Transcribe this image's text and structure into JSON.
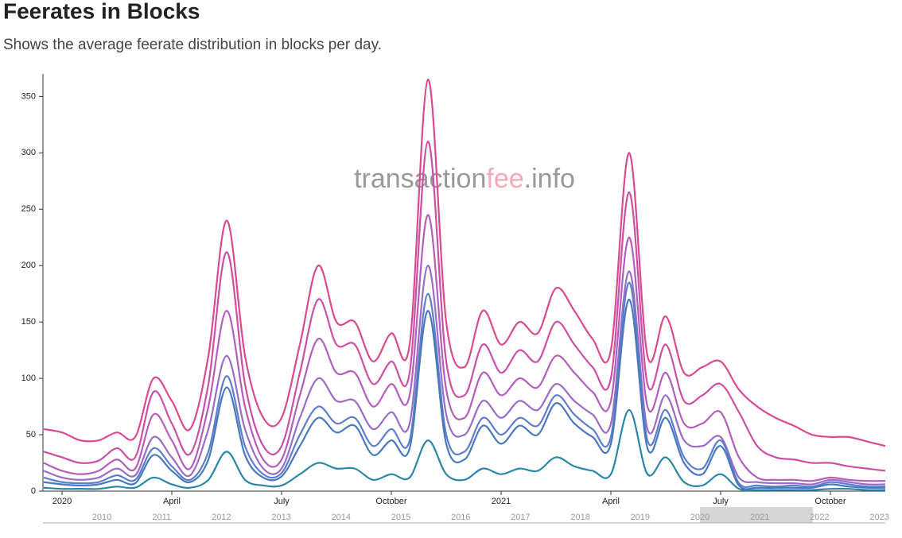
{
  "chart_data": {
    "type": "line",
    "title": "Feerates in Blocks",
    "subtitle": "Shows the average feerate distribution in blocks per day.",
    "watermark": [
      "transaction",
      "fee",
      ".info"
    ],
    "categories": [
      null,
      "2020",
      null,
      null,
      null,
      null,
      null,
      "April",
      null,
      null,
      null,
      null,
      null,
      "July",
      null,
      null,
      null,
      null,
      null,
      "October",
      null,
      null,
      null,
      null,
      null,
      "2021",
      null,
      null,
      null,
      null,
      null,
      "April",
      null,
      null,
      null,
      null,
      null,
      "July",
      null,
      null,
      null,
      null,
      null,
      "October",
      null,
      null,
      null
    ],
    "ylim": [
      0,
      370
    ],
    "yticks": [
      0,
      50,
      100,
      150,
      200,
      250,
      300,
      350
    ],
    "series": [
      {
        "color": "#da4a8f",
        "values": [
          55,
          52,
          45,
          45,
          52,
          48,
          100,
          80,
          55,
          120,
          240,
          120,
          65,
          65,
          130,
          200,
          150,
          150,
          115,
          140,
          130,
          365,
          150,
          110,
          160,
          130,
          150,
          140,
          180,
          160,
          135,
          125,
          300,
          120,
          155,
          105,
          110,
          115,
          90,
          75,
          65,
          58,
          50,
          48,
          48,
          44,
          40
        ]
      },
      {
        "color": "#cc4fa6",
        "values": [
          35,
          30,
          25,
          27,
          38,
          30,
          88,
          60,
          33,
          95,
          212,
          95,
          40,
          40,
          105,
          170,
          130,
          130,
          95,
          115,
          105,
          310,
          115,
          85,
          130,
          105,
          125,
          115,
          150,
          130,
          110,
          100,
          265,
          95,
          130,
          80,
          85,
          95,
          70,
          40,
          30,
          28,
          25,
          25,
          22,
          20,
          18
        ]
      },
      {
        "color": "#b25fbb",
        "values": [
          25,
          18,
          15,
          18,
          28,
          20,
          68,
          45,
          20,
          75,
          160,
          75,
          28,
          28,
          85,
          135,
          105,
          105,
          75,
          95,
          85,
          245,
          90,
          65,
          105,
          85,
          100,
          92,
          120,
          105,
          88,
          80,
          225,
          75,
          105,
          60,
          60,
          70,
          30,
          12,
          10,
          10,
          9,
          12,
          10,
          9,
          9
        ]
      },
      {
        "color": "#9b6cc6",
        "values": [
          18,
          12,
          10,
          12,
          20,
          14,
          48,
          30,
          14,
          55,
          120,
          55,
          20,
          20,
          65,
          100,
          80,
          80,
          55,
          70,
          60,
          200,
          68,
          50,
          80,
          65,
          80,
          72,
          95,
          80,
          68,
          60,
          195,
          55,
          85,
          45,
          40,
          48,
          12,
          8,
          7,
          7,
          6,
          10,
          8,
          6,
          6
        ]
      },
      {
        "color": "#5e7ecb",
        "values": [
          12,
          8,
          7,
          8,
          14,
          10,
          38,
          22,
          10,
          35,
          102,
          40,
          15,
          16,
          50,
          75,
          60,
          65,
          40,
          55,
          45,
          175,
          50,
          35,
          65,
          50,
          65,
          58,
          85,
          68,
          55,
          48,
          185,
          45,
          72,
          30,
          20,
          45,
          7,
          5,
          4,
          5,
          4,
          8,
          6,
          4,
          4
        ]
      },
      {
        "color": "#4879bd",
        "values": [
          8,
          6,
          5,
          6,
          10,
          7,
          32,
          18,
          8,
          28,
          92,
          32,
          12,
          13,
          40,
          65,
          52,
          58,
          32,
          45,
          38,
          160,
          42,
          28,
          58,
          42,
          58,
          50,
          78,
          60,
          48,
          42,
          170,
          38,
          65,
          25,
          15,
          40,
          5,
          3,
          3,
          3,
          3,
          6,
          4,
          3,
          3
        ]
      },
      {
        "color": "#2c86a8",
        "values": [
          3,
          2,
          2,
          2,
          4,
          3,
          12,
          6,
          3,
          10,
          35,
          10,
          5,
          5,
          15,
          25,
          20,
          20,
          10,
          15,
          12,
          45,
          15,
          10,
          20,
          15,
          20,
          18,
          30,
          22,
          18,
          15,
          72,
          15,
          30,
          8,
          5,
          15,
          2,
          1,
          1,
          1,
          1,
          2,
          2,
          1,
          1
        ]
      }
    ],
    "navigator": [
      "2010",
      "2011",
      "2012",
      "2013",
      "2014",
      "2015",
      "2016",
      "2017",
      "2018",
      "2019",
      "2020",
      "2021",
      "2022",
      "2023"
    ]
  }
}
